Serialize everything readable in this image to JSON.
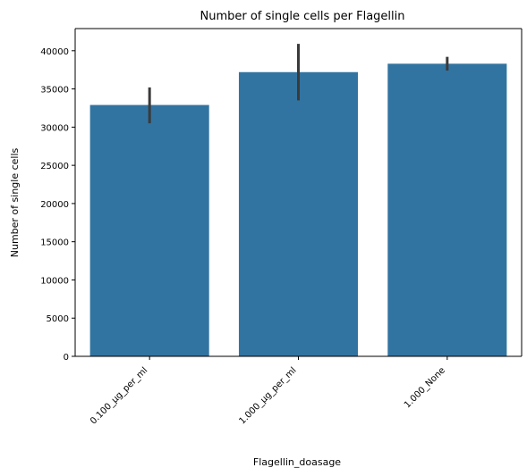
{
  "chart_data": {
    "type": "bar",
    "title": "Number of single cells per Flagellin",
    "xlabel": "Flagellin_doasage",
    "ylabel": "Number of single cells",
    "categories": [
      "0.100_µg_per_ml",
      "1.000_µg_per_ml",
      "1.000_None"
    ],
    "values": [
      32900,
      37200,
      38300
    ],
    "error_low": [
      30500,
      33500,
      37400
    ],
    "error_high": [
      35200,
      40900,
      39200
    ],
    "ylim": [
      0,
      42900
    ],
    "yticks": [
      0,
      5000,
      10000,
      15000,
      20000,
      25000,
      30000,
      35000,
      40000
    ],
    "grid": false,
    "colors": {
      "bar": "#3274a1",
      "error": "#3a3a3a",
      "axis": "#000000"
    }
  }
}
